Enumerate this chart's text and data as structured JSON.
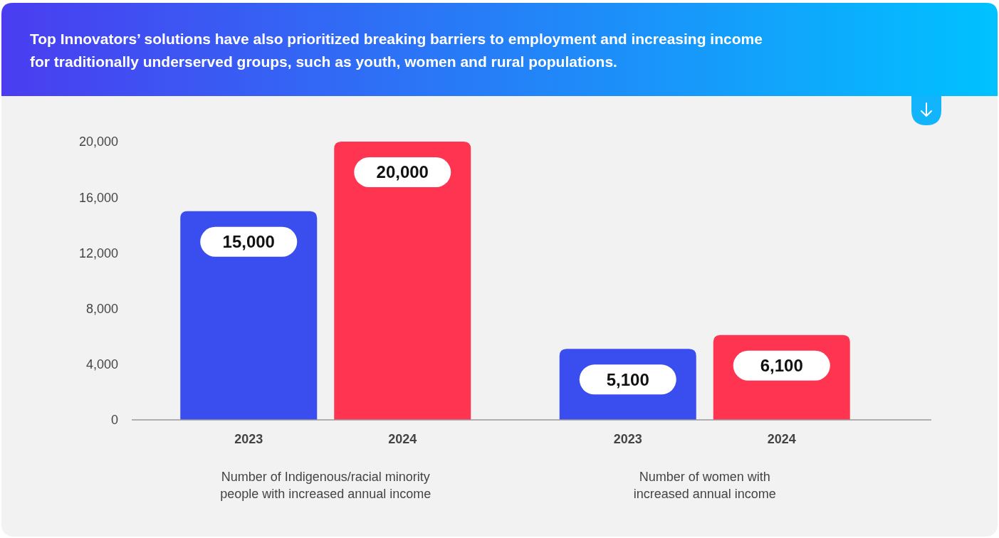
{
  "chart_data": {
    "type": "bar",
    "title": "Top Innovators’ solutions have also prioritized breaking barriers to employment and increasing income for traditionally underserved groups, such as youth, women and rural populations.",
    "categories": [
      "Number of Indigenous/racial minority people with increased annual income",
      "Number of women with increased annual income"
    ],
    "series": [
      {
        "name": "2023",
        "color": "#3a4ef0",
        "values": [
          15000,
          5100
        ],
        "value_labels": [
          "15,000",
          "5,100"
        ]
      },
      {
        "name": "2024",
        "color": "#ff3450",
        "values": [
          20000,
          6100
        ],
        "value_labels": [
          "20,000",
          "6,100"
        ]
      }
    ],
    "ylim": [
      0,
      20000
    ],
    "yticks": [
      {
        "value": 0,
        "label": "0"
      },
      {
        "value": 4000,
        "label": "4,000"
      },
      {
        "value": 8000,
        "label": "8,000"
      },
      {
        "value": 12000,
        "label": "12,000"
      },
      {
        "value": 16000,
        "label": "16,000"
      },
      {
        "value": 20000,
        "label": "20,000"
      }
    ],
    "grid": false
  }
}
